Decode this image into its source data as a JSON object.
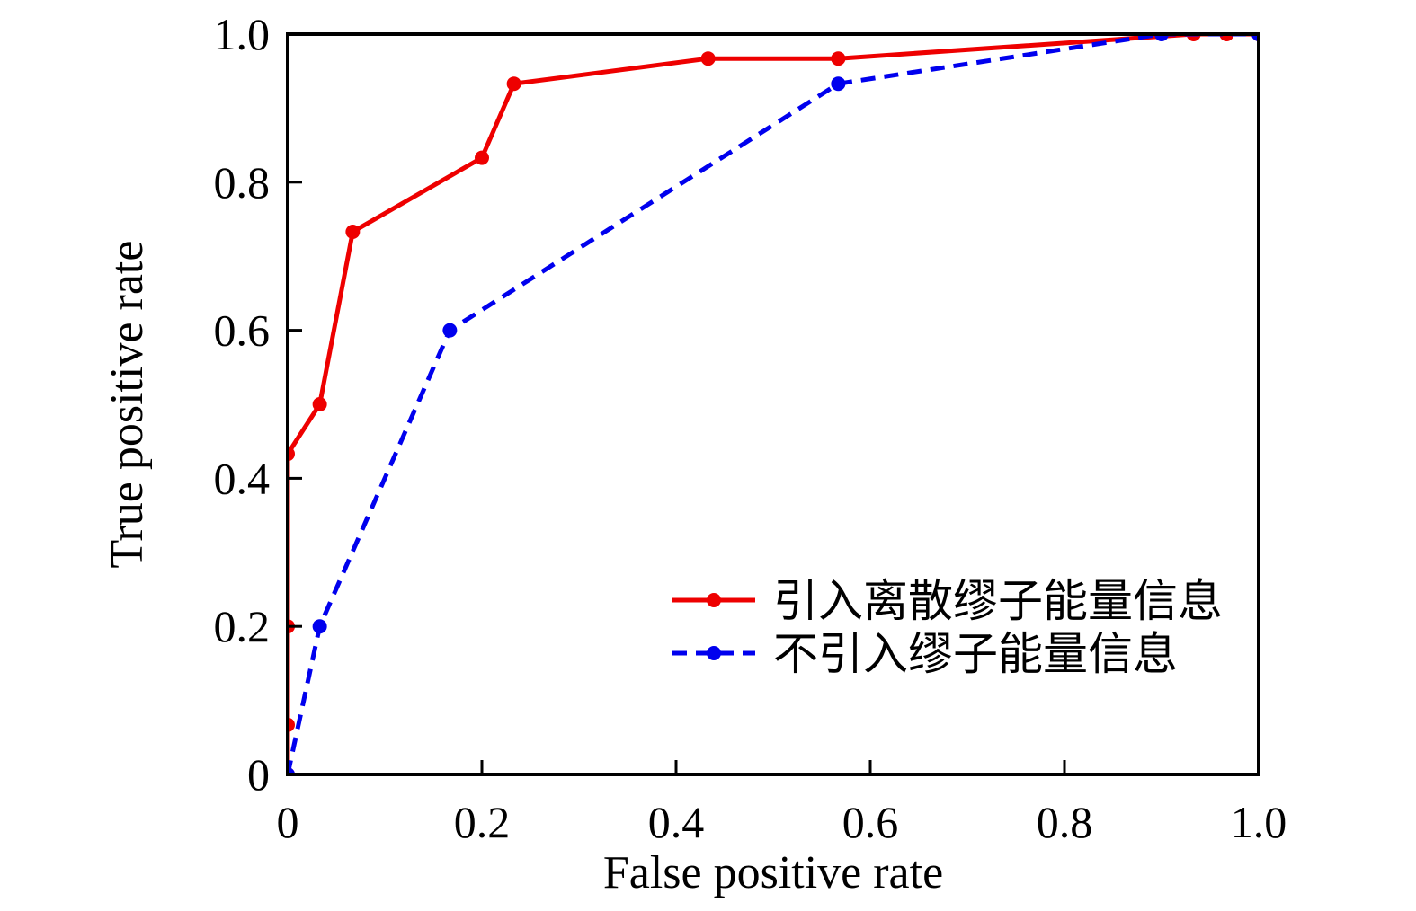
{
  "figure": {
    "background": "#ffffff",
    "text_color": "#000000"
  },
  "chart_data": {
    "type": "line",
    "title": "",
    "xlabel": "False positive rate",
    "ylabel": "True positive rate",
    "xlim": [
      0,
      1.0
    ],
    "ylim": [
      0,
      1.0
    ],
    "xticks": [
      0,
      0.2,
      0.4,
      0.6,
      0.8,
      1.0
    ],
    "yticks": [
      0,
      0.2,
      0.4,
      0.6,
      0.8,
      1.0
    ],
    "xtick_labels": [
      "0",
      "0.2",
      "0.4",
      "0.6",
      "0.8",
      "1.0"
    ],
    "ytick_labels": [
      "0",
      "0.2",
      "0.4",
      "0.6",
      "0.8",
      "1.0"
    ],
    "grid": false,
    "legend": {
      "position": "inside-lower-right",
      "frame": false
    },
    "series": [
      {
        "name": "引入离散缪子能量信息",
        "color": "#ee0000",
        "line_style": "solid",
        "marker": "circle",
        "points": [
          [
            0,
            0
          ],
          [
            0,
            0.067
          ],
          [
            0,
            0.2
          ],
          [
            0,
            0.433
          ],
          [
            0.033,
            0.5
          ],
          [
            0.067,
            0.733
          ],
          [
            0.2,
            0.833
          ],
          [
            0.233,
            0.933
          ],
          [
            0.433,
            0.967
          ],
          [
            0.567,
            0.967
          ],
          [
            0.933,
            1.0
          ],
          [
            0.967,
            1.0
          ],
          [
            1.0,
            1.0
          ]
        ]
      },
      {
        "name": "不引入缪子能量信息",
        "color": "#0000ee",
        "line_style": "dashed",
        "marker": "circle",
        "points": [
          [
            0,
            0
          ],
          [
            0.033,
            0.2
          ],
          [
            0.167,
            0.6
          ],
          [
            0.567,
            0.933
          ],
          [
            0.9,
            1.0
          ],
          [
            1.0,
            1.0
          ]
        ]
      }
    ]
  }
}
